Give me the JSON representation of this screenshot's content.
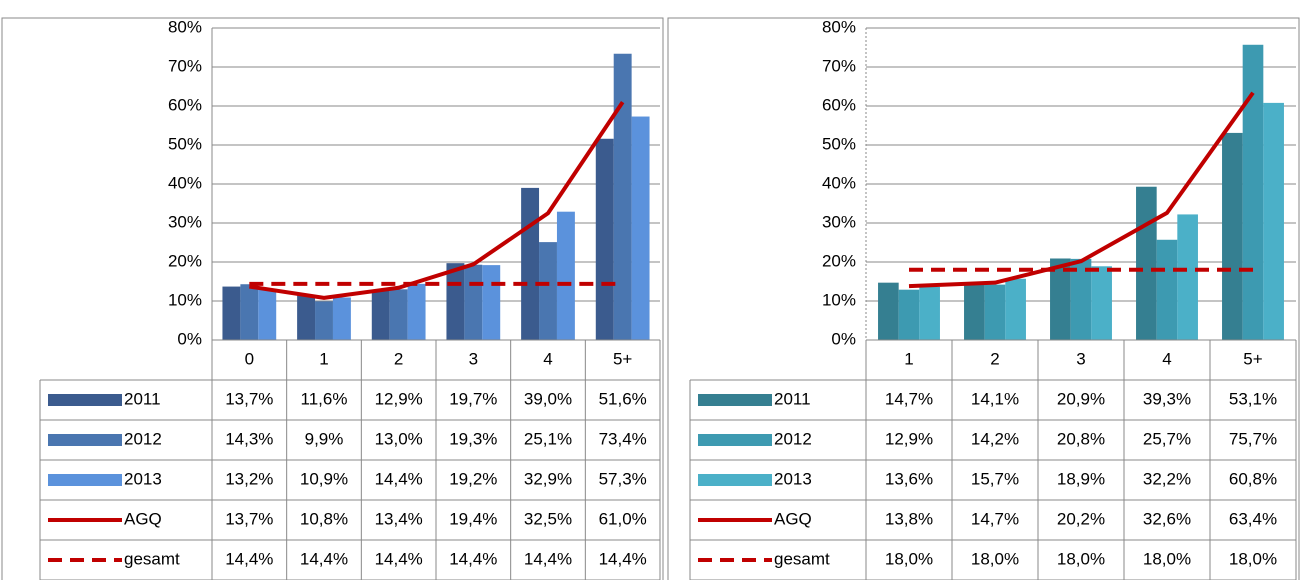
{
  "chart_data": [
    {
      "type": "bar",
      "categories": [
        "0",
        "1",
        "2",
        "3",
        "4",
        "5+"
      ],
      "ylim": [
        0,
        80
      ],
      "yticks": [
        {
          "value": 0,
          "label": "0%"
        },
        {
          "value": 10,
          "label": "10%"
        },
        {
          "value": 20,
          "label": "20%"
        },
        {
          "value": 30,
          "label": "30%"
        },
        {
          "value": 40,
          "label": "40%"
        },
        {
          "value": 50,
          "label": "50%"
        },
        {
          "value": 60,
          "label": "60%"
        },
        {
          "value": 70,
          "label": "70%"
        },
        {
          "value": 80,
          "label": "80%"
        }
      ],
      "grid": true,
      "series": [
        {
          "name": "2011",
          "type": "bar",
          "color": "#3b5b8e",
          "values": [
            13.7,
            11.6,
            12.9,
            19.7,
            39.0,
            51.6
          ],
          "value_labels": [
            "13,7%",
            "11,6%",
            "12,9%",
            "19,7%",
            "39,0%",
            "51,6%"
          ]
        },
        {
          "name": "2012",
          "type": "bar",
          "color": "#4a76b0",
          "values": [
            14.3,
            9.9,
            13.0,
            19.3,
            25.1,
            73.4
          ],
          "value_labels": [
            "14,3%",
            "9,9%",
            "13,0%",
            "19,3%",
            "25,1%",
            "73,4%"
          ]
        },
        {
          "name": "2013",
          "type": "bar",
          "color": "#5b92dc",
          "values": [
            13.2,
            10.9,
            14.4,
            19.2,
            32.9,
            57.3
          ],
          "value_labels": [
            "13,2%",
            "10,9%",
            "14,4%",
            "19,2%",
            "32,9%",
            "57,3%"
          ]
        },
        {
          "name": "AGQ",
          "type": "line",
          "color": "#c00000",
          "dash": false,
          "values": [
            13.7,
            10.8,
            13.4,
            19.4,
            32.5,
            61.0
          ],
          "value_labels": [
            "13,7%",
            "10,8%",
            "13,4%",
            "19,4%",
            "32,5%",
            "61,0%"
          ]
        },
        {
          "name": "gesamt",
          "type": "line",
          "color": "#c00000",
          "dash": true,
          "values": [
            14.4,
            14.4,
            14.4,
            14.4,
            14.4,
            14.4
          ],
          "value_labels": [
            "14,4%",
            "14,4%",
            "14,4%",
            "14,4%",
            "14,4%",
            "14,4%"
          ]
        }
      ]
    },
    {
      "type": "bar",
      "categories": [
        "1",
        "2",
        "3",
        "4",
        "5+"
      ],
      "ylim": [
        0,
        80
      ],
      "yticks": [
        {
          "value": 0,
          "label": "0%"
        },
        {
          "value": 10,
          "label": "10%"
        },
        {
          "value": 20,
          "label": "20%"
        },
        {
          "value": 30,
          "label": "30%"
        },
        {
          "value": 40,
          "label": "40%"
        },
        {
          "value": 50,
          "label": "50%"
        },
        {
          "value": 60,
          "label": "60%"
        },
        {
          "value": 70,
          "label": "70%"
        },
        {
          "value": 80,
          "label": "80%"
        }
      ],
      "grid": true,
      "series": [
        {
          "name": "2011",
          "type": "bar",
          "color": "#357f91",
          "values": [
            14.7,
            14.1,
            20.9,
            39.3,
            53.1
          ],
          "value_labels": [
            "14,7%",
            "14,1%",
            "20,9%",
            "39,3%",
            "53,1%"
          ]
        },
        {
          "name": "2012",
          "type": "bar",
          "color": "#3d9ab1",
          "values": [
            12.9,
            14.2,
            20.8,
            25.7,
            75.7
          ],
          "value_labels": [
            "12,9%",
            "14,2%",
            "20,8%",
            "25,7%",
            "75,7%"
          ]
        },
        {
          "name": "2013",
          "type": "bar",
          "color": "#4bb0c8",
          "values": [
            13.6,
            15.7,
            18.9,
            32.2,
            60.8
          ],
          "value_labels": [
            "13,6%",
            "15,7%",
            "18,9%",
            "32,2%",
            "60,8%"
          ]
        },
        {
          "name": "AGQ",
          "type": "line",
          "color": "#c00000",
          "dash": false,
          "values": [
            13.8,
            14.7,
            20.2,
            32.6,
            63.4
          ],
          "value_labels": [
            "13,8%",
            "14,7%",
            "20,2%",
            "32,6%",
            "63,4%"
          ]
        },
        {
          "name": "gesamt",
          "type": "line",
          "color": "#c00000",
          "dash": true,
          "values": [
            18.0,
            18.0,
            18.0,
            18.0,
            18.0
          ],
          "value_labels": [
            "18,0%",
            "18,0%",
            "18,0%",
            "18,0%",
            "18,0%"
          ]
        }
      ]
    }
  ]
}
